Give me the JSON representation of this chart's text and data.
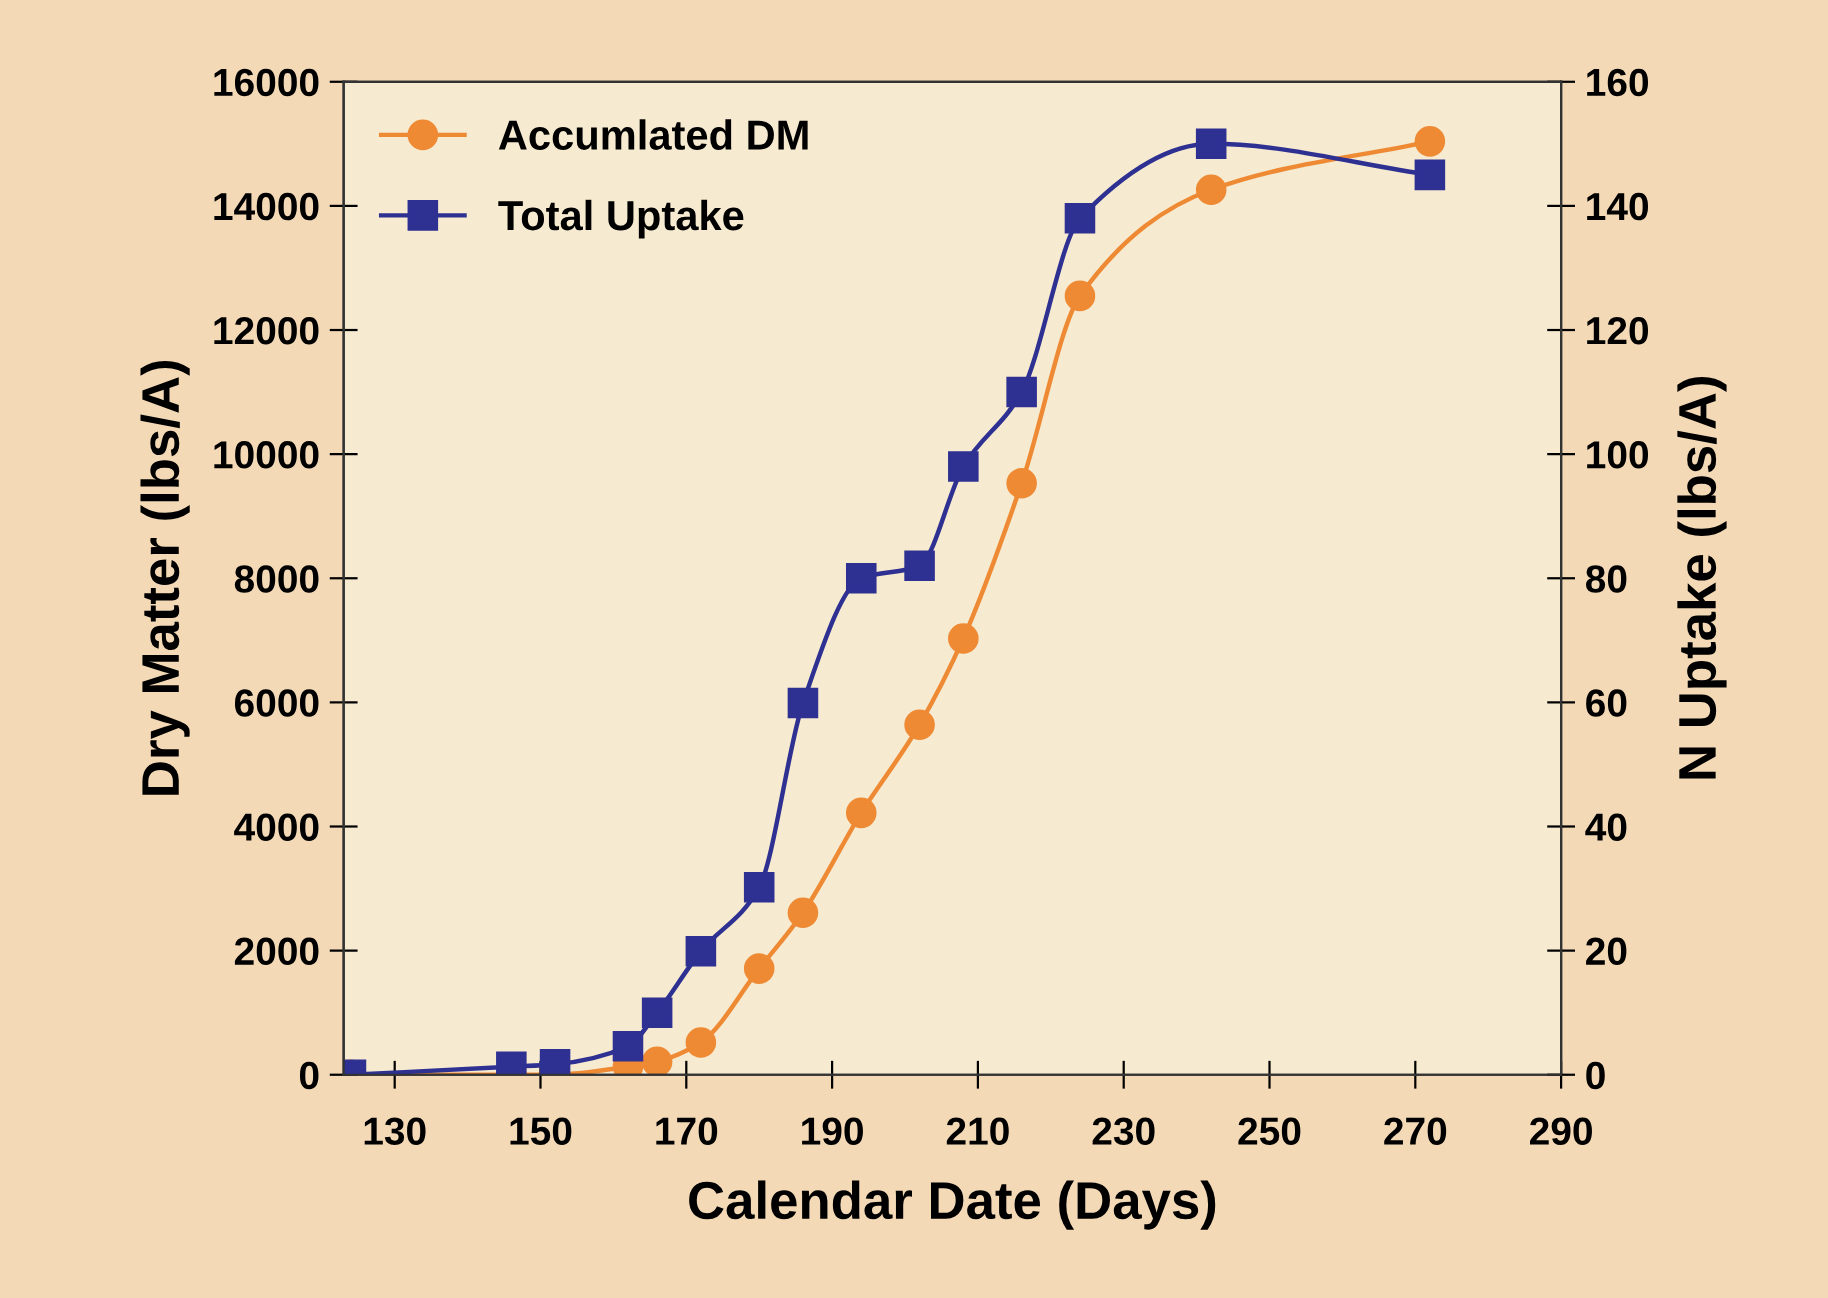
{
  "chart_data": {
    "type": "line",
    "xlabel": "Calendar Date (Days)",
    "ylabel": "Dry Matter (lbs/A)",
    "y2label": "N Uptake (lbs/A)",
    "x": [
      124,
      146,
      152,
      162,
      166,
      172,
      180,
      186,
      194,
      202,
      208,
      216,
      224,
      242,
      272
    ],
    "series": [
      {
        "name": "Accumlated DM",
        "color": "#ef8a34",
        "marker": "circle",
        "values": [
          0,
          0,
          0,
          130,
          210,
          520,
          1710,
          2610,
          4220,
          5640,
          7030,
          9530,
          12550,
          14260,
          15040
        ]
      },
      {
        "name": "Total Uptake",
        "color": "#2e3192",
        "marker": "square",
        "axis": "y2",
        "values": [
          0,
          1.3,
          1.7,
          4.6,
          10,
          19.9,
          30.2,
          59.9,
          80,
          82,
          98,
          110,
          138,
          150,
          145
        ]
      }
    ],
    "xlim": [
      123,
      290
    ],
    "xticks": [
      130,
      150,
      170,
      190,
      210,
      230,
      250,
      270,
      290
    ],
    "ylim": [
      0,
      16000
    ],
    "yticks": [
      0,
      2000,
      4000,
      6000,
      8000,
      10000,
      12000,
      14000,
      16000
    ],
    "y2lim": [
      0,
      160
    ],
    "y2ticks": [
      0,
      20,
      40,
      60,
      80,
      100,
      120,
      140,
      160
    ],
    "grid": false,
    "legend": "top left",
    "line_style": "solid"
  }
}
